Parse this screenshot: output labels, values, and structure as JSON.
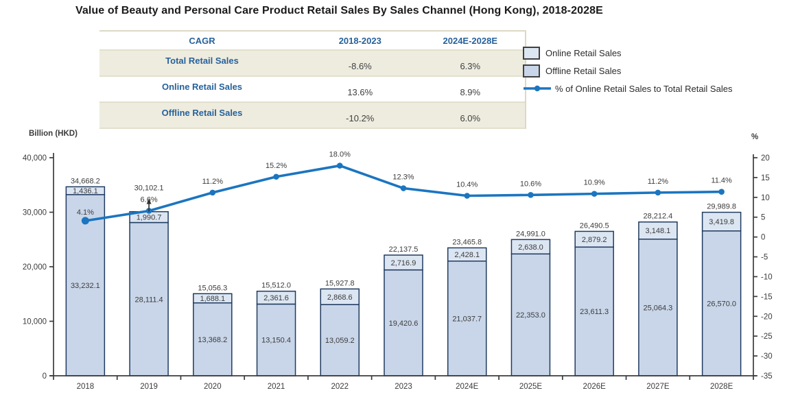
{
  "title": "Value of Beauty and Personal Care Product Retail Sales By Sales Channel (Hong Kong), 2018-2028E",
  "cagr_table": {
    "header": [
      "CAGR",
      "2018-2023",
      "2024E-2028E"
    ],
    "rows": [
      {
        "label": "Total Retail Sales",
        "cagr_2018_2023": "-8.6%",
        "cagr_2024e_2028e": "6.3%"
      },
      {
        "label": "Online Retail Sales",
        "cagr_2018_2023": "13.6%",
        "cagr_2024e_2028e": "8.9%"
      },
      {
        "label": "Offline Retail Sales",
        "cagr_2018_2023": "-10.2%",
        "cagr_2024e_2028e": "6.0%"
      }
    ]
  },
  "legend": {
    "items": [
      {
        "label": "Online Retail Sales"
      },
      {
        "label": "Offline Retail Sales"
      },
      {
        "label": "% of Online Retail Sales to Total Retail Sales"
      }
    ]
  },
  "colors": {
    "online_fill": "#dce6f2",
    "offline_fill": "#c9d6e9",
    "bar_border": "#1f3a5f",
    "line": "#1b75c0",
    "axis": "#3b3b3b",
    "label_text": "#3b3b3b",
    "table_accent": "#26619c"
  },
  "chart_data": {
    "type": "bar-line-combo",
    "categories": [
      "2018",
      "2019",
      "2020",
      "2021",
      "2022",
      "2023",
      "2024E",
      "2025E",
      "2026E",
      "2027E",
      "2028E"
    ],
    "series": [
      {
        "name": "Offline Retail Sales",
        "type": "bar",
        "stack_position": "bottom",
        "axis": "left",
        "values": [
          33232.1,
          28111.4,
          13368.2,
          13150.4,
          13059.2,
          19420.6,
          21037.7,
          22353.0,
          23611.3,
          25064.3,
          26570.0
        ],
        "labels": [
          "33,232.1",
          "28,111.4",
          "13,368.2",
          "13,150.4",
          "13,059.2",
          "19,420.6",
          "21,037.7",
          "22,353.0",
          "23,611.3",
          "25,064.3",
          "26,570.0"
        ]
      },
      {
        "name": "Online Retail Sales",
        "type": "bar",
        "stack_position": "top",
        "axis": "left",
        "values": [
          1436.1,
          1990.7,
          1688.1,
          2361.6,
          2868.6,
          2716.9,
          2428.1,
          2638.0,
          2879.2,
          3148.1,
          3419.8
        ],
        "labels": [
          "1,436.1",
          "1,990.7",
          "1,688.1",
          "2,361.6",
          "2,868.6",
          "2,716.9",
          "2,428.1",
          "2,638.0",
          "2,879.2",
          "3,148.1",
          "3,419.8"
        ]
      },
      {
        "name": "% of Online Retail Sales to Total Retail Sales",
        "type": "line",
        "axis": "right",
        "values": [
          4.1,
          6.6,
          11.2,
          15.2,
          18.0,
          12.3,
          10.4,
          10.6,
          10.9,
          11.2,
          11.4
        ],
        "labels": [
          "4.1%",
          "6.6%",
          "11.2%",
          "15.2%",
          "18.0%",
          "12.3%",
          "10.4%",
          "10.6%",
          "10.9%",
          "11.2%",
          "11.4%"
        ]
      }
    ],
    "totals": {
      "values": [
        34668.2,
        30102.1,
        15056.3,
        15512.0,
        15927.8,
        22137.5,
        23465.8,
        24991.0,
        26490.5,
        28212.4,
        29989.8
      ],
      "labels": [
        "34,668.2",
        "30,102.1",
        "15,056.3",
        "15,512.0",
        "15,927.8",
        "22,137.5",
        "23,465.8",
        "24,991.0",
        "26,490.5",
        "28,212.4",
        "29,989.8"
      ]
    },
    "left_axis": {
      "title": "Billion (HKD)",
      "min": 0,
      "max": 40000,
      "tick_values": [
        0,
        10000,
        20000,
        30000,
        40000
      ],
      "tick_labels": [
        "0",
        "10,000",
        "20,000",
        "30,000",
        "40,000"
      ]
    },
    "right_axis": {
      "title": "%",
      "min": -35,
      "max": 20,
      "tick_values": [
        20,
        15,
        10,
        5,
        0,
        -5,
        -10,
        -15,
        -20,
        -25,
        -30,
        -35
      ],
      "tick_labels": [
        "20",
        "15",
        "10",
        "5",
        "0",
        "-5",
        "-10",
        "-15",
        "-20",
        "-25",
        "-30",
        "-35"
      ]
    },
    "grid": false,
    "legend_position": "top-right"
  }
}
